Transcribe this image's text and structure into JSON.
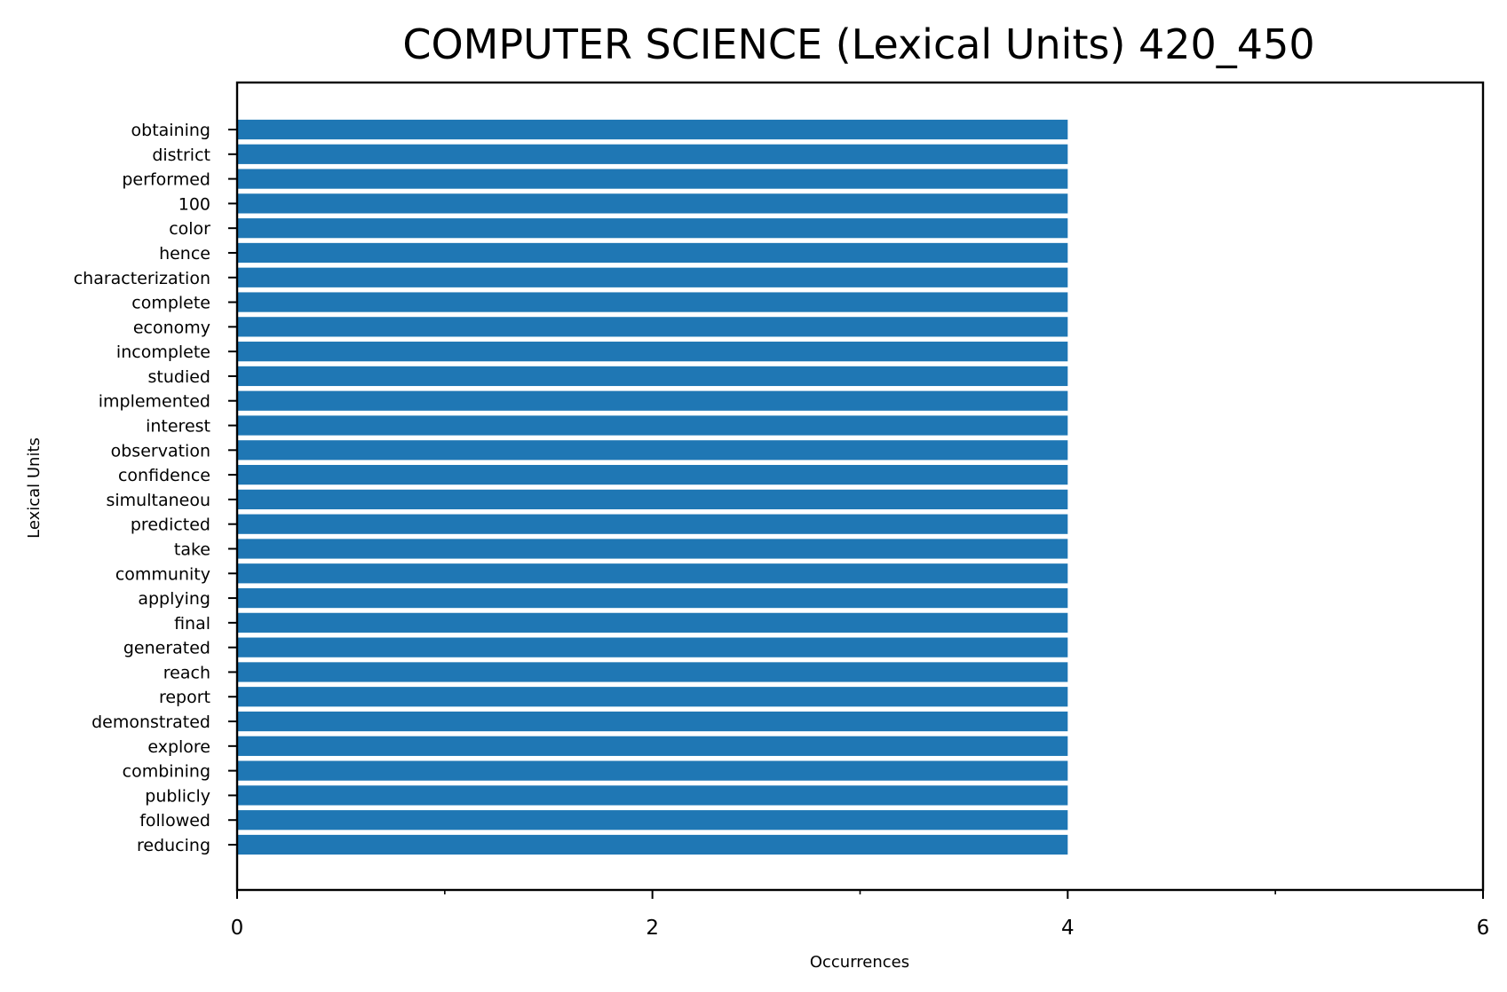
{
  "chart_data": {
    "type": "bar",
    "orientation": "horizontal",
    "title": "COMPUTER SCIENCE (Lexical Units) 420_450",
    "xlabel": "Occurrences",
    "ylabel": "Lexical Units",
    "xlim": [
      0,
      6
    ],
    "x_ticks": [
      0,
      2,
      4,
      6
    ],
    "x_minor_ticks": [
      1,
      3,
      5
    ],
    "grid": false,
    "bar_color": "#1f77b4",
    "categories": [
      "obtaining",
      "district",
      "performed",
      "100",
      "color",
      "hence",
      "characterization",
      "complete",
      "economy",
      "incomplete",
      "studied",
      "implemented",
      "interest",
      "observation",
      "confidence",
      "simultaneou",
      "predicted",
      "take",
      "community",
      "applying",
      "final",
      "generated",
      "reach",
      "report",
      "demonstrated",
      "explore",
      "combining",
      "publicly",
      "followed",
      "reducing"
    ],
    "values": [
      4,
      4,
      4,
      4,
      4,
      4,
      4,
      4,
      4,
      4,
      4,
      4,
      4,
      4,
      4,
      4,
      4,
      4,
      4,
      4,
      4,
      4,
      4,
      4,
      4,
      4,
      4,
      4,
      4,
      4
    ]
  }
}
